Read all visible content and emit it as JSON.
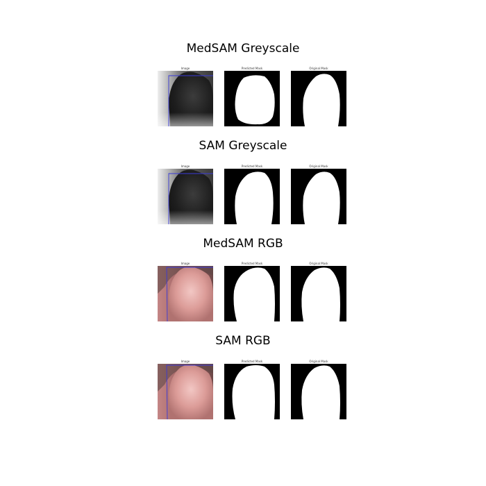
{
  "panel_labels": {
    "image": "Image",
    "predicted": "Predicted Mask",
    "original": "Original Mask"
  },
  "rows": [
    {
      "title": "MedSAM Greyscale",
      "mode": "grey"
    },
    {
      "title": "SAM Greyscale",
      "mode": "grey"
    },
    {
      "title": "MedSAM RGB",
      "mode": "rgb"
    },
    {
      "title": "SAM RGB",
      "mode": "rgb"
    }
  ],
  "colors": {
    "bbox": "#3a3ad8",
    "mask_bg": "#000000",
    "mask_fg": "#ffffff"
  }
}
